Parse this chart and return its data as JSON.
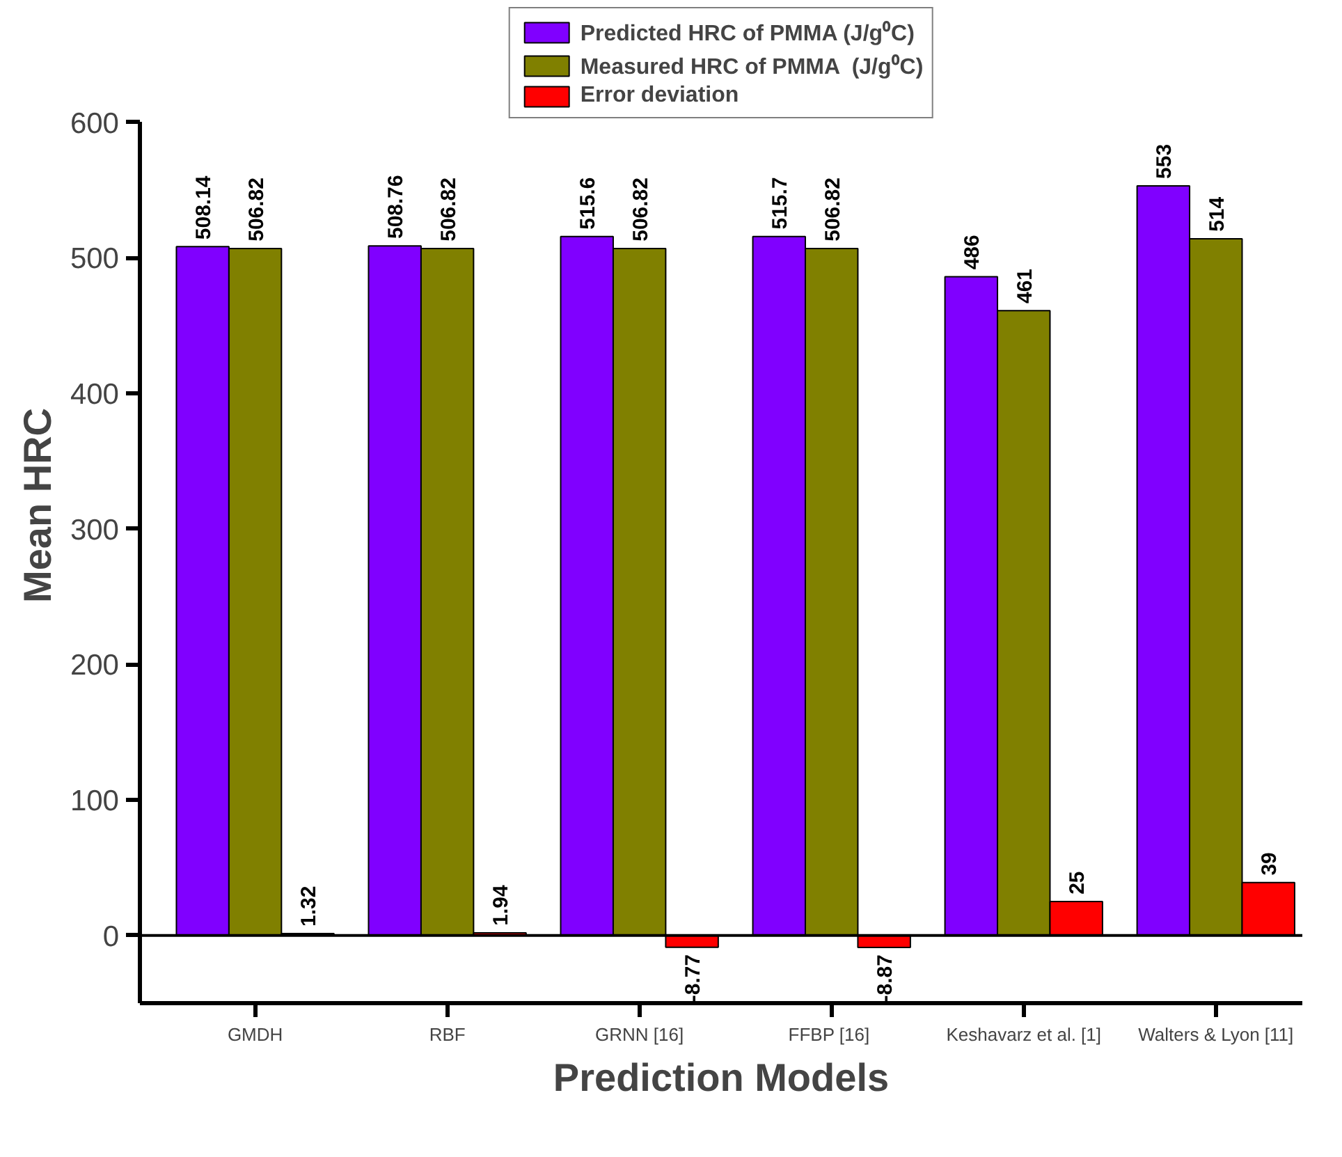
{
  "chart_data": {
    "type": "bar",
    "xlabel": "Prediction Models",
    "ylabel": "Mean HRC",
    "categories": [
      "GMDH",
      "RBF",
      "GRNN [16]",
      "FFBP  [16]",
      "Keshavarz et al. [1]",
      "Walters & Lyon [11]"
    ],
    "series": [
      {
        "name": "Predicted HRC of PMMA (J/g⁰C)",
        "color": "#8000ff",
        "values": [
          508.14,
          508.76,
          515.6,
          515.7,
          486,
          553
        ]
      },
      {
        "name": "Measured HRC of PMMA  (J/g⁰C)",
        "color": "#808000",
        "values": [
          506.82,
          506.82,
          506.82,
          506.82,
          461,
          514
        ]
      },
      {
        "name": "Error deviation",
        "color": "#ff0000",
        "values": [
          1.32,
          1.94,
          -8.77,
          -8.87,
          25,
          39
        ]
      }
    ],
    "ylim": [
      -50,
      600
    ],
    "yticks": [
      0,
      100,
      200,
      300,
      400,
      500,
      600
    ],
    "ref_lines": [
      {
        "axis": "y",
        "value": 0
      }
    ],
    "data_labels": true,
    "grid": false,
    "legend": "top"
  }
}
